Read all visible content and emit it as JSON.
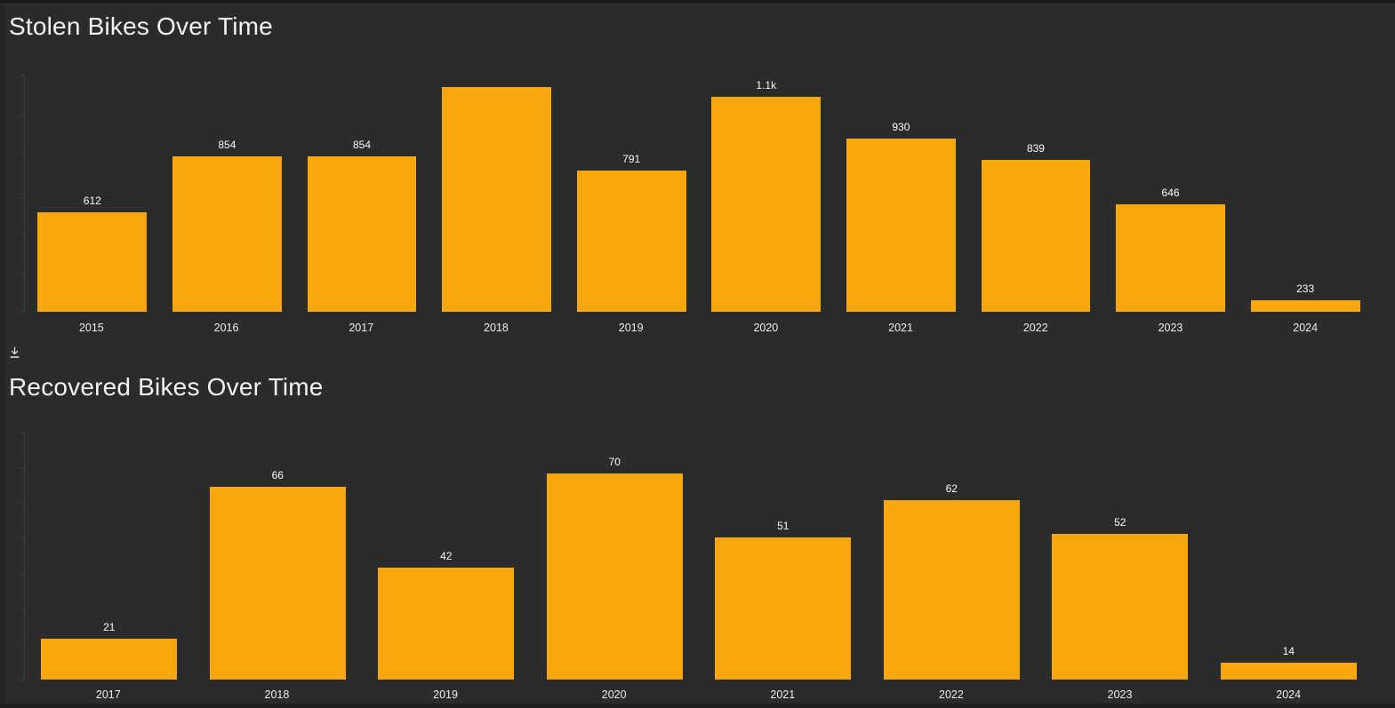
{
  "colors": {
    "background": "#2B2B2B",
    "bar": "#F8A70C",
    "title_text": "#F2F2F2",
    "value_label_text": "#FAFAFA",
    "category_label_text": "#EDEDED",
    "axis_line": "#3D3D3D",
    "window_edge": "#1E1E1E"
  },
  "icons": {
    "download": "download-icon (arrow down to bar)"
  },
  "chart_data": [
    {
      "type": "bar",
      "title": "Stolen Bikes Over Time",
      "categories": [
        "2015",
        "2016",
        "2017",
        "2018",
        "2019",
        "2020",
        "2021",
        "2022",
        "2023",
        "2024"
      ],
      "values": [
        612,
        854,
        854,
        1150,
        791,
        1108,
        930,
        839,
        646,
        233
      ],
      "bar_labels": [
        "612",
        "854",
        "854",
        "",
        "791",
        "1.1k",
        "930",
        "839",
        "646",
        "233"
      ],
      "xlabel": "",
      "ylabel": "",
      "ylim": [
        184,
        1204
      ],
      "bar_color": "#F8A70C",
      "grid": false,
      "legend": "none",
      "note": "2018 bar data label not displayed (clipped at plot top); value estimated from bar height"
    },
    {
      "type": "bar",
      "title": "Recovered Bikes Over Time",
      "categories": [
        "2017",
        "2018",
        "2019",
        "2020",
        "2021",
        "2022",
        "2023",
        "2024"
      ],
      "values": [
        21,
        66,
        42,
        70,
        51,
        62,
        52,
        14
      ],
      "bar_labels": [
        "21",
        "66",
        "42",
        "70",
        "51",
        "62",
        "52",
        "14"
      ],
      "xlabel": "",
      "ylabel": "",
      "ylim": [
        9,
        82
      ],
      "bar_color": "#F8A70C",
      "grid": false,
      "legend": "none"
    }
  ]
}
